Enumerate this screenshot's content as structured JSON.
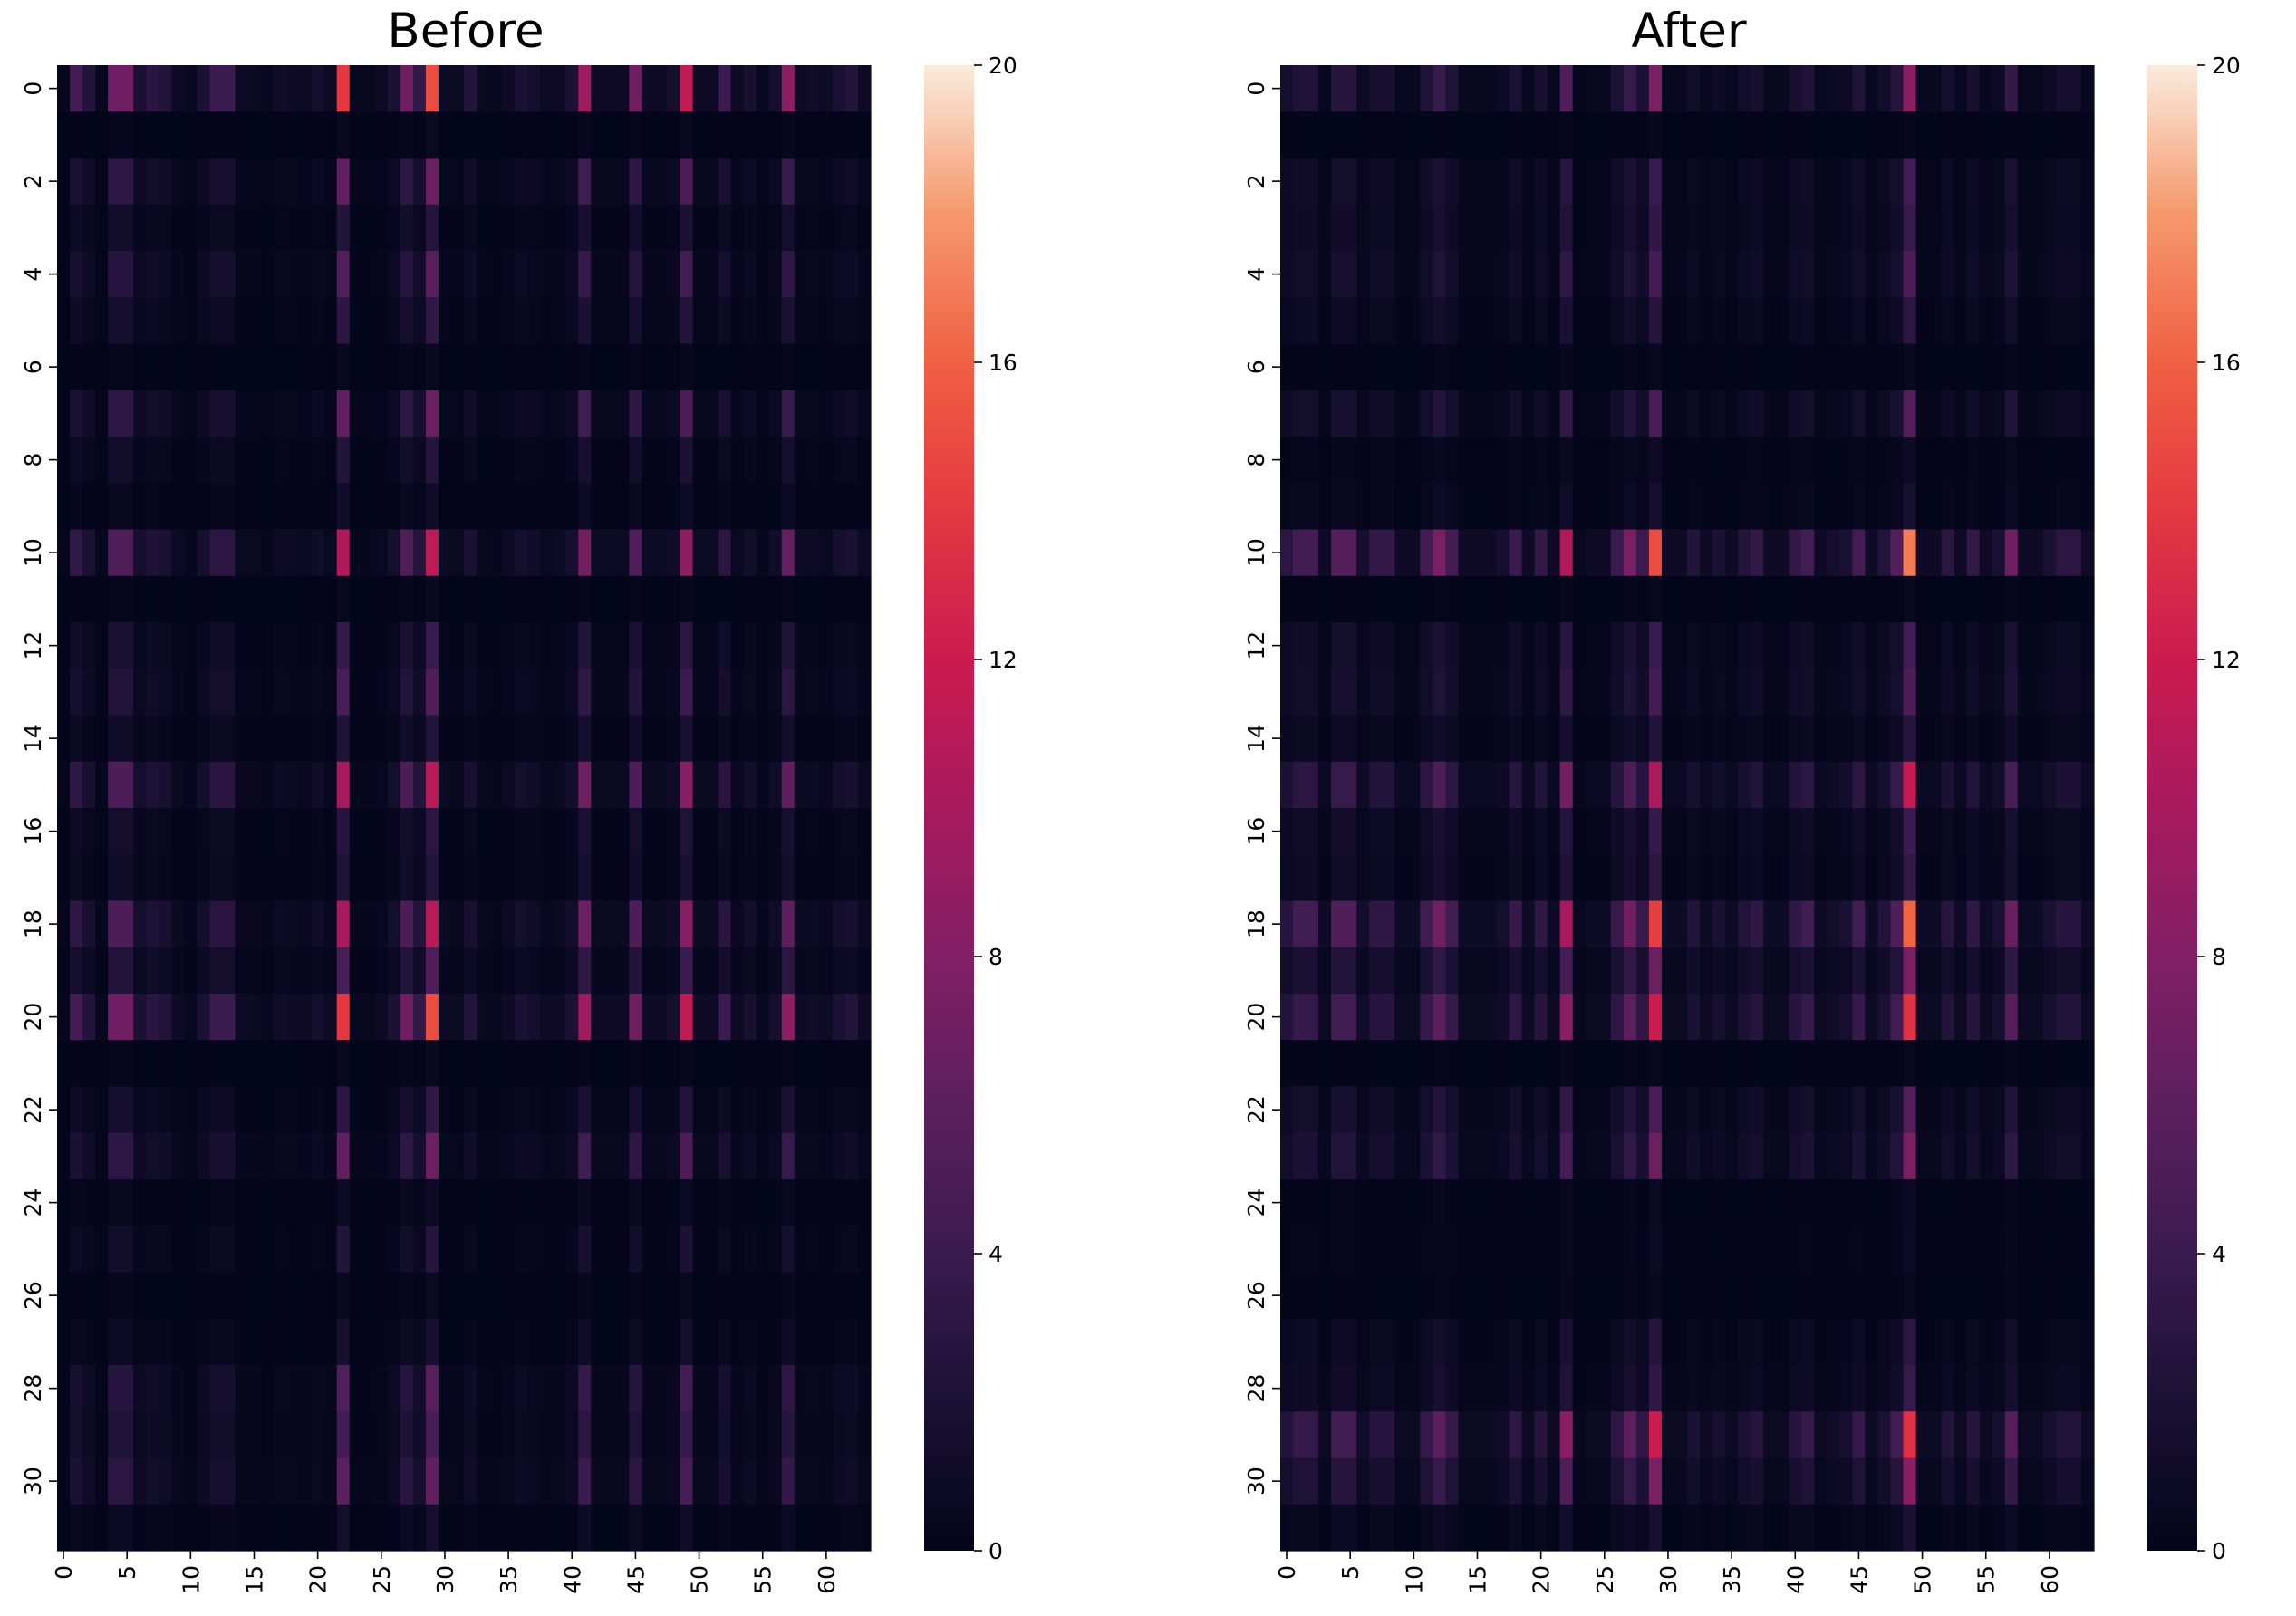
{
  "chart_data": [
    {
      "type": "heatmap",
      "title": "Before",
      "xlabel": "",
      "ylabel": "",
      "rows": 32,
      "cols": 64,
      "x_tick_labels": [
        "0",
        "5",
        "10",
        "15",
        "20",
        "25",
        "30",
        "35",
        "40",
        "45",
        "50",
        "55",
        "60"
      ],
      "y_tick_labels": [
        "0",
        "2",
        "4",
        "6",
        "8",
        "10",
        "12",
        "14",
        "16",
        "18",
        "20",
        "22",
        "24",
        "26",
        "28",
        "30"
      ],
      "colorbar": {
        "min": 0,
        "max": 20,
        "ticks": [
          "0",
          "4",
          "8",
          "12",
          "16",
          "20"
        ],
        "colormap": "rocket"
      },
      "row_weights": [
        1.0,
        0.04,
        0.45,
        0.18,
        0.38,
        0.22,
        0.03,
        0.45,
        0.18,
        0.08,
        0.75,
        0.03,
        0.26,
        0.35,
        0.16,
        0.72,
        0.2,
        0.16,
        0.72,
        0.35,
        1.0,
        0.03,
        0.22,
        0.45,
        0.06,
        0.18,
        0.04,
        0.12,
        0.38,
        0.32,
        0.42,
        0.1
      ],
      "col_weights": [
        0.3,
        4.5,
        2.5,
        0.5,
        7.0,
        7.0,
        2.0,
        3.0,
        2.5,
        1.0,
        0.5,
        2.0,
        4.0,
        4.0,
        0.8,
        0.8,
        0.5,
        1.2,
        1.0,
        0.8,
        1.5,
        0.8,
        14.0,
        0.5,
        0.5,
        0.8,
        2.0,
        7.0,
        3.5,
        15.0,
        1.0,
        0.8,
        2.5,
        0.6,
        0.5,
        1.0,
        2.0,
        1.5,
        0.8,
        1.0,
        2.0,
        9.5,
        1.0,
        1.0,
        1.0,
        7.0,
        1.0,
        1.0,
        1.5,
        11.5,
        1.0,
        1.0,
        4.0,
        0.8,
        1.8,
        0.5,
        1.5,
        8.5,
        1.0,
        1.2,
        0.8,
        2.0,
        2.5,
        1.0
      ]
    },
    {
      "type": "heatmap",
      "title": "After",
      "xlabel": "",
      "ylabel": "",
      "rows": 32,
      "cols": 64,
      "x_tick_labels": [
        "0",
        "5",
        "10",
        "15",
        "20",
        "25",
        "30",
        "35",
        "40",
        "45",
        "50",
        "55",
        "60"
      ],
      "y_tick_labels": [
        "0",
        "2",
        "4",
        "6",
        "8",
        "10",
        "12",
        "14",
        "16",
        "18",
        "20",
        "22",
        "24",
        "26",
        "28",
        "30"
      ],
      "colorbar": {
        "min": 0,
        "max": 20,
        "ticks": [
          "0",
          "4",
          "8",
          "12",
          "16",
          "20"
        ],
        "colormap": "rocket"
      },
      "row_weights": [
        0.5,
        0.02,
        0.26,
        0.22,
        0.3,
        0.18,
        0.03,
        0.32,
        0.06,
        0.1,
        1.0,
        0.03,
        0.26,
        0.3,
        0.16,
        0.68,
        0.24,
        0.2,
        0.95,
        0.45,
        0.8,
        0.03,
        0.32,
        0.45,
        0.04,
        0.05,
        0.03,
        0.18,
        0.22,
        0.8,
        0.5,
        0.12
      ],
      "col_weights": [
        3.0,
        4.5,
        4.5,
        1.0,
        5.5,
        5.5,
        1.5,
        3.5,
        3.5,
        1.0,
        1.0,
        4.5,
        7.5,
        4.5,
        1.0,
        1.0,
        1.0,
        1.5,
        4.0,
        1.0,
        3.5,
        1.0,
        10.5,
        0.5,
        1.0,
        1.0,
        4.0,
        7.5,
        4.0,
        15.0,
        1.0,
        1.0,
        2.5,
        1.0,
        2.0,
        1.0,
        2.5,
        3.5,
        1.0,
        1.0,
        3.5,
        4.5,
        1.0,
        1.5,
        2.0,
        4.5,
        1.0,
        2.5,
        5.5,
        17.0,
        1.0,
        1.0,
        3.0,
        1.0,
        3.5,
        1.0,
        2.0,
        7.0,
        1.0,
        1.0,
        2.0,
        3.0,
        3.0,
        1.0
      ]
    }
  ]
}
